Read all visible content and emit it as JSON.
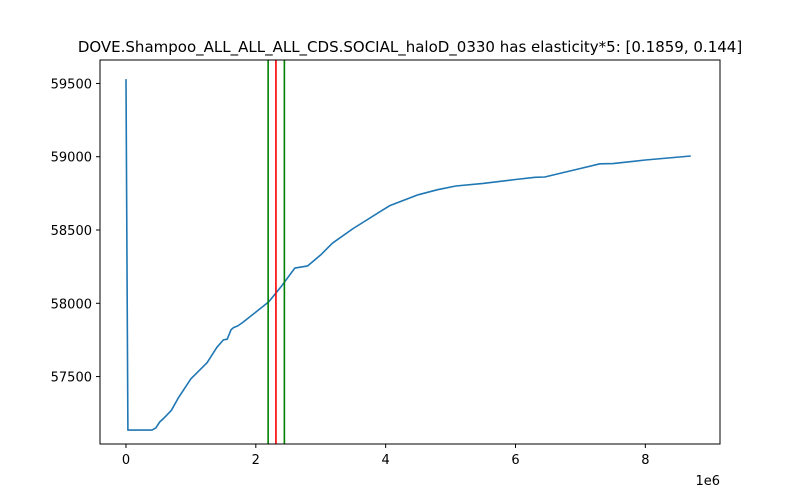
{
  "chart_data": {
    "type": "line",
    "title": "DOVE.Shampoo_ALL_ALL_ALL_CDS.SOCIAL_haloD_0330 has elasticity*5:   [0.1859, 0.144]",
    "xlabel": "",
    "ylabel": "",
    "x_offset_label": "1e6",
    "xlim": [
      -400000,
      9150000
    ],
    "ylim": [
      57040,
      59660
    ],
    "x_ticks": [
      0,
      2000000,
      4000000,
      6000000,
      8000000
    ],
    "x_tick_labels": [
      "0",
      "2",
      "4",
      "6",
      "8"
    ],
    "y_ticks": [
      57500,
      58000,
      58500,
      59000,
      59500
    ],
    "y_tick_labels": [
      "57500",
      "58000",
      "58500",
      "59000",
      "59500"
    ],
    "grid": false,
    "series": [
      {
        "color": "#1f77b4",
        "x": [
          0,
          30000,
          100000,
          200000,
          300000,
          400000,
          460000,
          520000,
          580000,
          700000,
          800000,
          1000000,
          1250000,
          1400000,
          1500000,
          1560000,
          1620000,
          1660000,
          1720000,
          1800000,
          2000000,
          2200000,
          2400000,
          2600000,
          2800000,
          3000000,
          3180000,
          3500000,
          4060000,
          4500000,
          4800000,
          5080000,
          5500000,
          6000000,
          6300000,
          6450000,
          7000000,
          7300000,
          7500000,
          8000000,
          8700000
        ],
        "y": [
          59530,
          57135,
          57135,
          57135,
          57135,
          57135,
          57150,
          57190,
          57215,
          57270,
          57350,
          57485,
          57595,
          57700,
          57750,
          57755,
          57820,
          57835,
          57845,
          57870,
          57940,
          58010,
          58120,
          58240,
          58255,
          58330,
          58410,
          58510,
          58665,
          58740,
          58775,
          58800,
          58818,
          58845,
          58860,
          58862,
          58920,
          58952,
          58953,
          58978,
          59005
        ]
      }
    ],
    "vlines": [
      {
        "x": 2190000,
        "color": "#008000"
      },
      {
        "x": 2310000,
        "color": "#ff0000"
      },
      {
        "x": 2440000,
        "color": "#008000"
      }
    ]
  }
}
